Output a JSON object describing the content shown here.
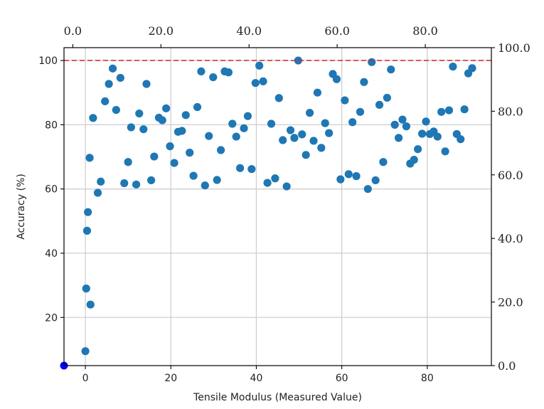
{
  "chart_data": {
    "type": "scatter",
    "title": "",
    "xlabel": "Tensile Modulus (Measured Value)",
    "ylabel": "Accuracy (%)",
    "xlim": [
      -5,
      95
    ],
    "ylim": [
      5,
      104
    ],
    "grid": true,
    "x_ticks": [
      0,
      20,
      40,
      60,
      80
    ],
    "x_tick_labels": [
      "0",
      "20",
      "40",
      "60",
      "80"
    ],
    "y_ticks": [
      20,
      40,
      60,
      80,
      100
    ],
    "y_tick_labels": [
      "20",
      "40",
      "60",
      "80",
      "100"
    ],
    "top_axis": {
      "ticks": [
        0,
        20,
        40,
        60,
        80
      ],
      "tick_labels": [
        "0.0",
        "20.0",
        "40.0",
        "60.0",
        "80.0"
      ],
      "xlim": [
        -2,
        95
      ]
    },
    "right_axis": {
      "ticks": [
        0,
        20,
        40,
        60,
        80,
        100
      ],
      "tick_labels": [
        "0.0",
        "20.0",
        "40.0",
        "60.0",
        "80.0",
        "100.0"
      ],
      "ylim": [
        0,
        100
      ]
    },
    "reference_line": {
      "y": 100,
      "color": "#d62728",
      "style": "dashed"
    },
    "highlight_point": {
      "x": -5,
      "y": 5,
      "color": "#0000ff"
    },
    "series": [
      {
        "color": "#1f77b4",
        "points": [
          [
            0,
            9.5
          ],
          [
            0.2,
            29
          ],
          [
            0.4,
            47
          ],
          [
            0.6,
            52.8
          ],
          [
            1.0,
            69.7
          ],
          [
            1.2,
            24
          ],
          [
            1.8,
            82.1
          ],
          [
            2.9,
            58.8
          ],
          [
            3.6,
            62.3
          ],
          [
            4.6,
            87.3
          ],
          [
            5.5,
            92.7
          ],
          [
            6.4,
            97.5
          ],
          [
            7.2,
            84.6
          ],
          [
            8.2,
            94.6
          ],
          [
            9.1,
            61.8
          ],
          [
            10.0,
            68.4
          ],
          [
            10.7,
            79.2
          ],
          [
            11.9,
            61.4
          ],
          [
            12.6,
            83.5
          ],
          [
            13.6,
            78.6
          ],
          [
            14.3,
            92.7
          ],
          [
            15.4,
            62.7
          ],
          [
            16.1,
            70.1
          ],
          [
            17.2,
            82.2
          ],
          [
            18.0,
            81.4
          ],
          [
            18.9,
            85.1
          ],
          [
            19.8,
            73.3
          ],
          [
            20.8,
            68.1
          ],
          [
            21.7,
            77.8
          ],
          [
            22.6,
            78.1
          ],
          [
            23.5,
            83.0
          ],
          [
            24.4,
            71.3
          ],
          [
            25.3,
            64.1
          ],
          [
            26.2,
            85.5
          ],
          [
            27.1,
            96.6
          ],
          [
            28.0,
            61.1
          ],
          [
            28.9,
            76.5
          ],
          [
            29.9,
            94.8
          ],
          [
            30.8,
            62.8
          ],
          [
            31.7,
            72.1
          ],
          [
            32.6,
            96.6
          ],
          [
            33.5,
            96.3
          ],
          [
            34.4,
            80.3
          ],
          [
            35.3,
            76.3
          ],
          [
            36.2,
            66.5
          ],
          [
            37.1,
            78.9
          ],
          [
            38.0,
            82.7
          ],
          [
            38.9,
            66.2
          ],
          [
            39.8,
            93.0
          ],
          [
            40.7,
            98.4
          ],
          [
            41.6,
            93.5
          ],
          [
            42.6,
            61.9
          ],
          [
            43.5,
            80.3
          ],
          [
            44.4,
            63.3
          ],
          [
            45.3,
            88.3
          ],
          [
            46.2,
            75.2
          ],
          [
            47.1,
            60.8
          ],
          [
            48.0,
            78.3
          ],
          [
            48.9,
            75.9
          ],
          [
            49.8,
            100.0
          ],
          [
            50.7,
            77.0
          ],
          [
            51.6,
            70.6
          ],
          [
            52.5,
            83.7
          ],
          [
            53.4,
            75.0
          ],
          [
            54.3,
            90.0
          ],
          [
            55.2,
            72.8
          ],
          [
            56.1,
            80.5
          ],
          [
            57.0,
            77.4
          ],
          [
            57.9,
            95.8
          ],
          [
            58.8,
            94.2
          ],
          [
            59.7,
            63.0
          ],
          [
            60.7,
            87.6
          ],
          [
            61.6,
            64.6
          ],
          [
            62.5,
            80.8
          ],
          [
            63.4,
            64.0
          ],
          [
            64.3,
            84.0
          ],
          [
            65.2,
            93.3
          ],
          [
            66.1,
            60.0
          ],
          [
            67.0,
            99.5
          ],
          [
            67.9,
            62.7
          ],
          [
            68.8,
            86.2
          ],
          [
            69.7,
            68.4
          ],
          [
            70.6,
            88.4
          ],
          [
            71.5,
            97.2
          ],
          [
            72.4,
            80.0
          ],
          [
            73.3,
            75.9
          ],
          [
            74.2,
            81.6
          ],
          [
            75.1,
            79.5
          ],
          [
            76.0,
            67.9
          ],
          [
            76.9,
            69.1
          ],
          [
            77.8,
            72.4
          ],
          [
            78.8,
            77.2
          ],
          [
            79.7,
            81.0
          ],
          [
            80.6,
            77.1
          ],
          [
            81.5,
            77.9
          ],
          [
            82.4,
            76.3
          ],
          [
            83.3,
            84.0
          ],
          [
            84.2,
            71.7
          ],
          [
            85.1,
            84.5
          ],
          [
            86.0,
            98.1
          ],
          [
            86.9,
            77.1
          ],
          [
            87.8,
            75.5
          ],
          [
            88.7,
            84.8
          ],
          [
            89.6,
            96.0
          ],
          [
            90.5,
            97.6
          ]
        ]
      }
    ]
  }
}
